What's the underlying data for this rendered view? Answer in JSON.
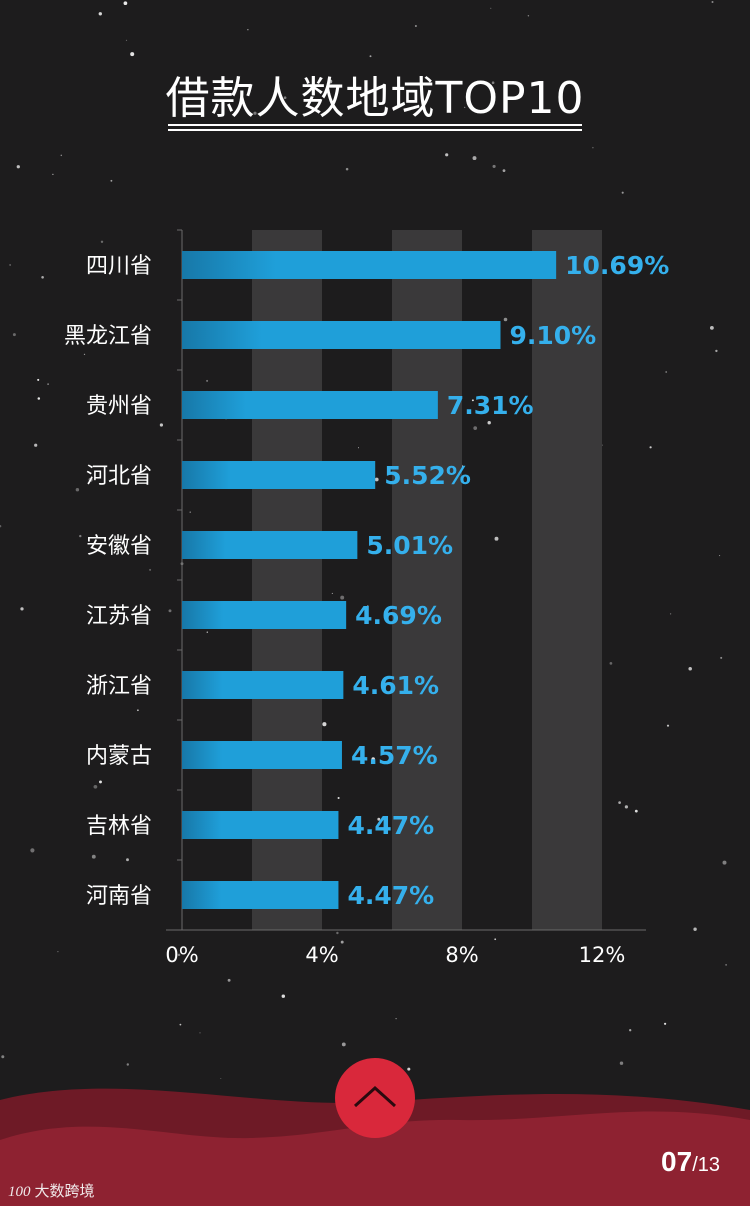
{
  "title": "借款人数地域TOP10",
  "chart_data": {
    "type": "bar",
    "orientation": "horizontal",
    "title": "借款人数地域TOP10",
    "categories": [
      "四川省",
      "黑龙江省",
      "贵州省",
      "河北省",
      "安徽省",
      "江苏省",
      "浙江省",
      "内蒙古",
      "吉林省",
      "河南省"
    ],
    "values": [
      10.69,
      9.1,
      7.31,
      5.52,
      5.01,
      4.69,
      4.61,
      4.57,
      4.47,
      4.47
    ],
    "value_labels": [
      "10.69%",
      "9.10%",
      "7.31%",
      "5.52%",
      "5.01%",
      "4.69%",
      "4.61%",
      "4.57%",
      "4.47%",
      "4.47%"
    ],
    "x_ticks": [
      0,
      4,
      8,
      12
    ],
    "x_tick_labels": [
      "0%",
      "4%",
      "8%",
      "12%"
    ],
    "xlim": [
      0,
      13
    ],
    "xlabel": "",
    "ylabel": "",
    "grid": "alternating vertical bands",
    "legend": "none",
    "colors": {
      "bar": "#1f9fd9",
      "bar_dark": "#1778a8",
      "value_label": "#35b0ec",
      "axis_text": "#ffffff",
      "band": "#3a393a"
    }
  },
  "nav": {
    "up_icon": "chevron-up-icon",
    "button_color": "#d9283b"
  },
  "page": {
    "current": "07",
    "total": "/13"
  },
  "brand": {
    "mark": "100",
    "name": "大数跨境"
  },
  "colors": {
    "background": "#1d1c1d",
    "wave_dark": "#6e1a26",
    "wave_light": "#8e2231"
  }
}
